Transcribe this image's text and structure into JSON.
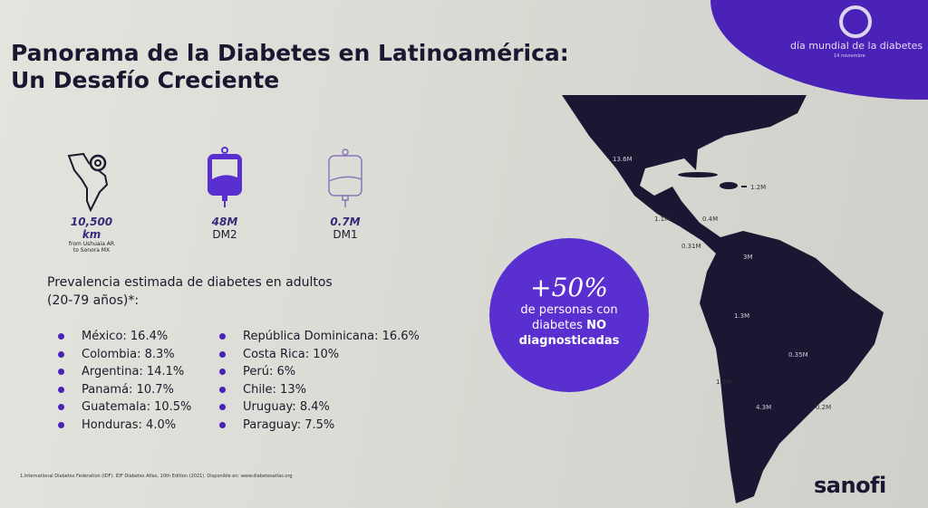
{
  "title_line1": "Panorama de la Diabetes en Latinoamérica:",
  "title_line2": "Un Desafío Creciente",
  "badge": {
    "title": "día mundial de la diabetes",
    "date": "14 noviembre"
  },
  "stats": [
    {
      "icon": "latin-america-map-pin-icon",
      "value": "10,500 km",
      "label1": "from Ushuaia AR",
      "label2": "to Sonora MX"
    },
    {
      "icon": "iv-bag-full-icon",
      "value": "48M",
      "label": "DM2"
    },
    {
      "icon": "iv-bag-empty-icon",
      "value": "0.7M",
      "label": "DM1"
    }
  ],
  "prevalence_title1": "Prevalencia estimada de diabetes en adultos",
  "prevalence_title2": "(20-79 años)*:",
  "prevalence_left": [
    "México: 16.4%",
    "Colombia: 8.3%",
    "Argentina: 14.1%",
    "Panamá: 10.7%",
    "Guatemala: 10.5%",
    "Honduras: 4.0%"
  ],
  "prevalence_right": [
    "República Dominicana: 16.6%",
    "Costa Rica: 10%",
    "Perú: 6%",
    "Chile: 13%",
    "Uruguay: 8.4%",
    "Paraguay: 7.5%"
  ],
  "callout": {
    "big": "+50%",
    "line1": "de personas con",
    "line2a": "diabetes ",
    "line2b": "NO",
    "line3": "diagnosticadas"
  },
  "map_labels": [
    "13.6M",
    "1.2M",
    "1.1M",
    "0.4M",
    "0.31M",
    "3M",
    "1.3M",
    "0.35M",
    "1.3M",
    "4.3M",
    "0.2M"
  ],
  "footnote": "1.International Diabetes Federation (IDF). IDF Diabetes Atlas, 10th Edition (2021). Disponible en: www.diabetesatlas.org",
  "logo": "sanofi",
  "colors": {
    "accent": "#4a22b8",
    "map": "#1a1733"
  }
}
